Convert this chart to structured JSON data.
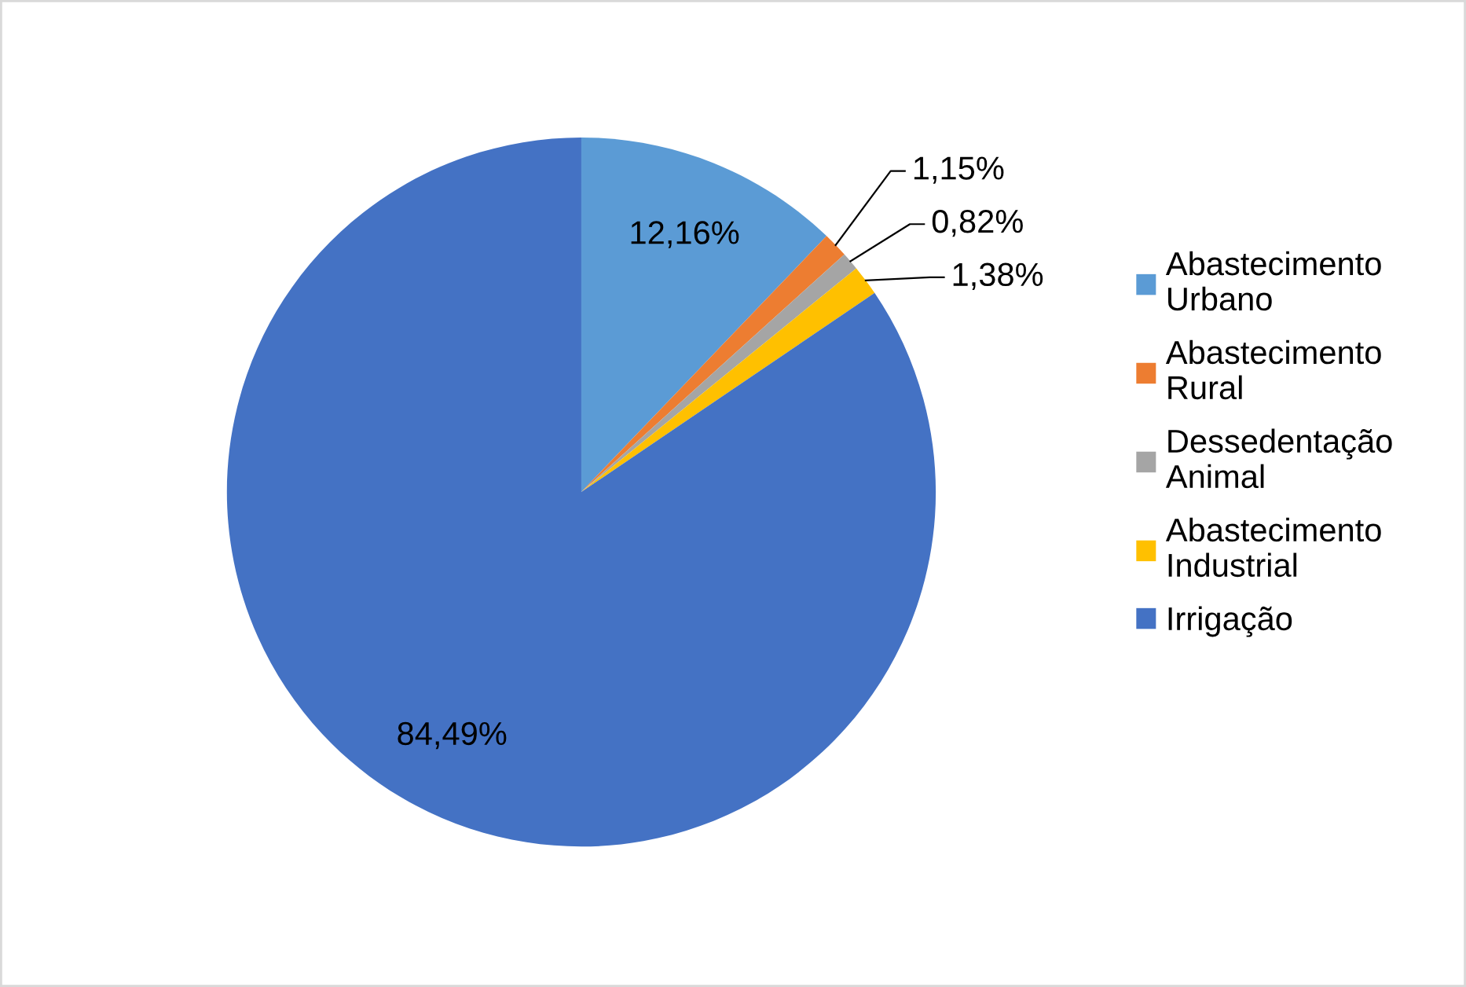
{
  "chart_data": {
    "type": "pie",
    "categories": [
      "Abastecimento Urbano",
      "Abastecimento Rural",
      "Dessedentação Animal",
      "Abastecimento Industrial",
      "Irrigação"
    ],
    "values": [
      12.16,
      1.15,
      0.82,
      1.38,
      84.49
    ],
    "value_labels": [
      "12,16%",
      "1,15%",
      "0,82%",
      "1,38%",
      "84,49%"
    ],
    "colors": [
      "#5b9bd5",
      "#ed7d31",
      "#a5a5a5",
      "#ffc000",
      "#4472c4"
    ],
    "legend": "right"
  }
}
